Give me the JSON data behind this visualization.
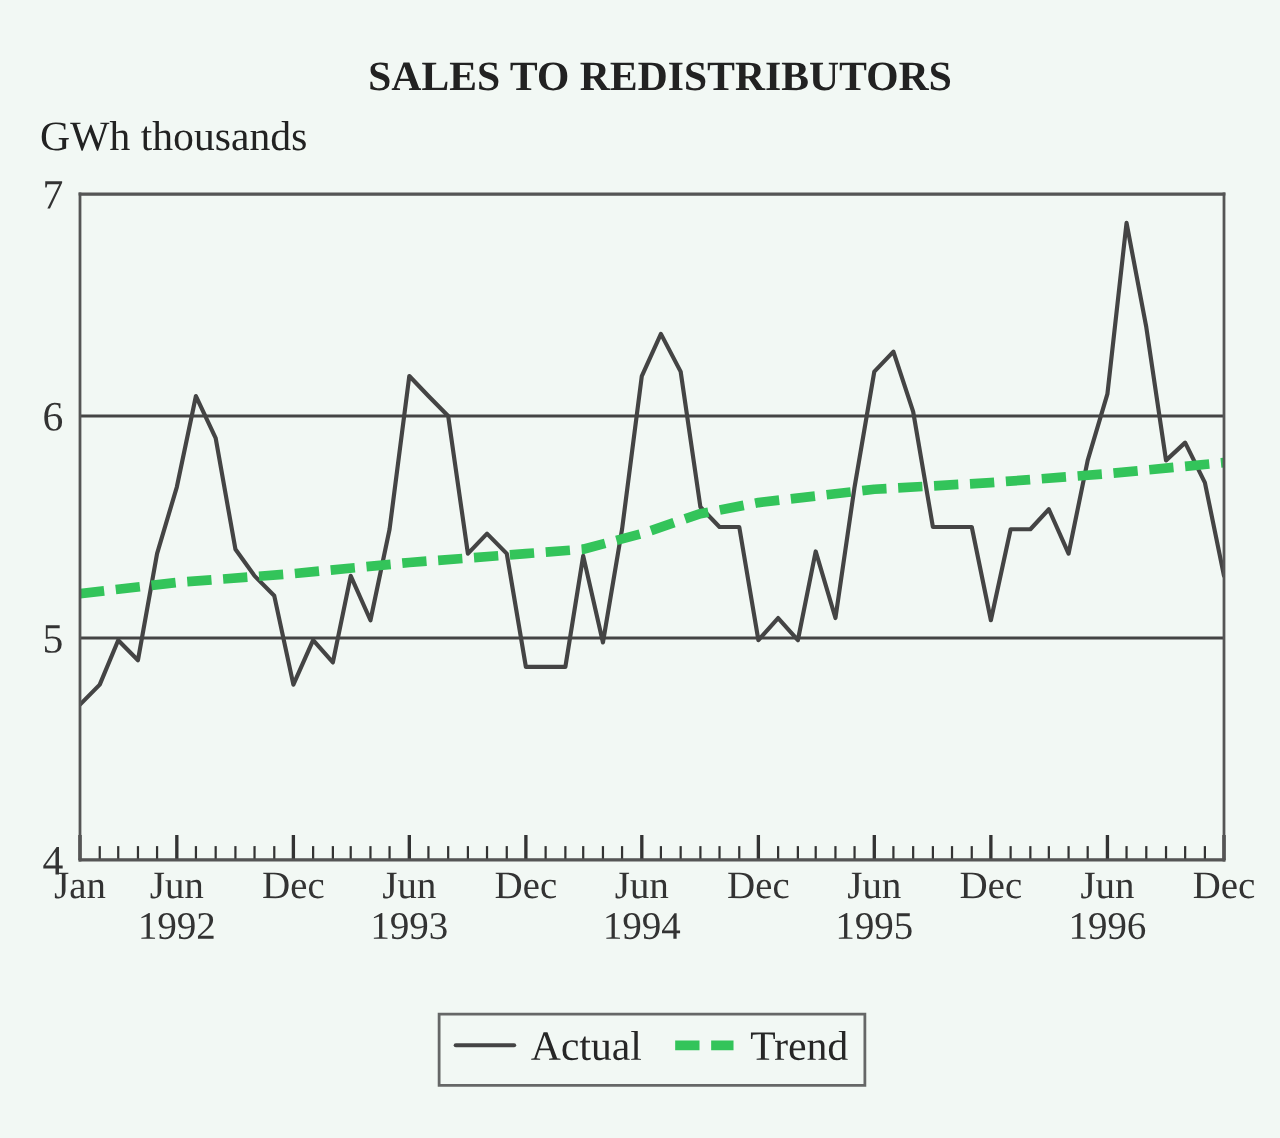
{
  "chart_data": {
    "type": "line",
    "title": "SALES TO REDISTRIBUTORS",
    "ylabel": "GWh thousands",
    "x": [
      "1992-01",
      "1992-02",
      "1992-03",
      "1992-04",
      "1992-05",
      "1992-06",
      "1992-07",
      "1992-08",
      "1992-09",
      "1992-10",
      "1992-11",
      "1992-12",
      "1993-01",
      "1993-02",
      "1993-03",
      "1993-04",
      "1993-05",
      "1993-06",
      "1993-07",
      "1993-08",
      "1993-09",
      "1993-10",
      "1993-11",
      "1993-12",
      "1994-01",
      "1994-02",
      "1994-03",
      "1994-04",
      "1994-05",
      "1994-06",
      "1994-07",
      "1994-08",
      "1994-09",
      "1994-10",
      "1994-11",
      "1994-12",
      "1995-01",
      "1995-02",
      "1995-03",
      "1995-04",
      "1995-05",
      "1995-06",
      "1995-07",
      "1995-08",
      "1995-09",
      "1995-10",
      "1995-11",
      "1995-12",
      "1996-01",
      "1996-02",
      "1996-03",
      "1996-04",
      "1996-05",
      "1996-06",
      "1996-07",
      "1996-08",
      "1996-09",
      "1996-10",
      "1996-11",
      "1996-12"
    ],
    "series": [
      {
        "name": "Actual",
        "color": "#444444",
        "line_style": "solid",
        "values": [
          4.7,
          4.79,
          4.99,
          4.9,
          5.38,
          5.68,
          6.09,
          5.9,
          5.4,
          5.28,
          5.19,
          4.79,
          4.99,
          4.89,
          5.28,
          5.08,
          5.49,
          6.18,
          6.09,
          6.0,
          5.38,
          5.47,
          5.38,
          4.87,
          4.87,
          4.87,
          5.37,
          4.98,
          5.49,
          6.18,
          6.37,
          6.2,
          5.59,
          5.5,
          5.5,
          4.99,
          5.09,
          4.99,
          5.39,
          5.09,
          5.68,
          6.2,
          6.29,
          6.02,
          5.5,
          5.5,
          5.5,
          5.08,
          5.49,
          5.49,
          5.58,
          5.38,
          5.8,
          6.1,
          6.87,
          6.4,
          5.8,
          5.88,
          5.7,
          5.28
        ]
      },
      {
        "name": "Trend",
        "color": "#33c45a",
        "line_style": "dashed",
        "x": [
          "1992-01",
          "1992-06",
          "1992-12",
          "1993-06",
          "1993-12",
          "1994-03",
          "1994-06",
          "1994-09",
          "1994-12",
          "1995-06",
          "1995-12",
          "1996-06",
          "1996-12"
        ],
        "values": [
          5.2,
          5.25,
          5.29,
          5.34,
          5.38,
          5.4,
          5.47,
          5.56,
          5.61,
          5.67,
          5.7,
          5.74,
          5.79
        ]
      }
    ],
    "xlim": [
      "1992-01",
      "1996-12"
    ],
    "xticks": [
      {
        "value": "1992-01",
        "label": "Jan"
      },
      {
        "value": "1992-06",
        "label": "Jun\n1992"
      },
      {
        "value": "1992-12",
        "label": "Dec"
      },
      {
        "value": "1993-06",
        "label": "Jun\n1993"
      },
      {
        "value": "1993-12",
        "label": "Dec"
      },
      {
        "value": "1994-06",
        "label": "Jun\n1994"
      },
      {
        "value": "1994-12",
        "label": "Dec"
      },
      {
        "value": "1995-06",
        "label": "Jun\n1995"
      },
      {
        "value": "1995-12",
        "label": "Dec"
      },
      {
        "value": "1996-06",
        "label": "Jun\n1996"
      },
      {
        "value": "1996-12",
        "label": "Dec"
      }
    ],
    "ylim": [
      4,
      7
    ],
    "yticks": [
      4,
      5,
      6,
      7
    ],
    "grid": "y",
    "legend": "bottom",
    "marker": "none"
  }
}
